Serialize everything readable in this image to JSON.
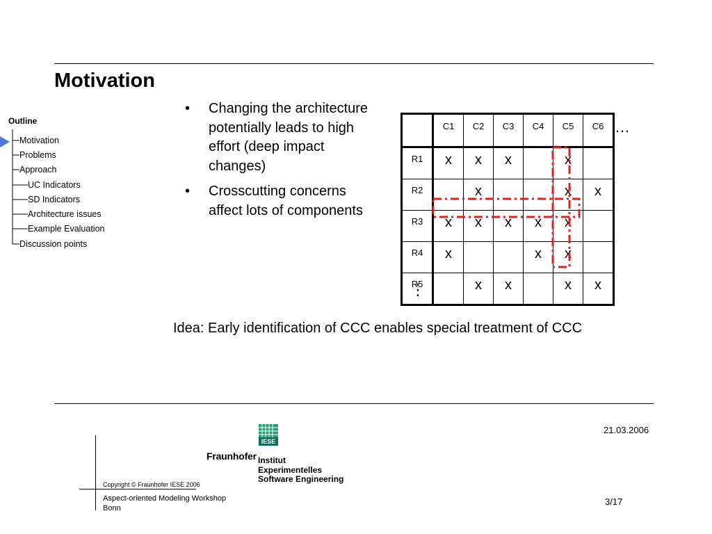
{
  "slide": {
    "title": "Motivation"
  },
  "outline": {
    "heading": "Outline",
    "items": [
      {
        "label": "Motivation",
        "level": 1,
        "current": true
      },
      {
        "label": "Problems",
        "level": 1
      },
      {
        "label": "Approach",
        "level": 1
      },
      {
        "label": "UC Indicators",
        "level": 2
      },
      {
        "label": "SD Indicators",
        "level": 2
      },
      {
        "label": "Architecture issues",
        "level": 2
      },
      {
        "label": "Example Evaluation",
        "level": 2
      },
      {
        "label": "Discussion points",
        "level": 1
      }
    ]
  },
  "bullets": [
    {
      "marker": "•",
      "text": "Changing the architecture potentially leads to high effort (deep impact changes)"
    },
    {
      "marker": "•",
      "text": "Crosscutting concerns affect lots of components"
    }
  ],
  "matrix": {
    "columns": [
      "C1",
      "C2",
      "C3",
      "C4",
      "C5",
      "C6"
    ],
    "rows": [
      {
        "label": "R1",
        "cells": [
          "x",
          "x",
          "x",
          "",
          "x",
          ""
        ]
      },
      {
        "label": "R2",
        "cells": [
          "",
          "x",
          "",
          "",
          "x",
          "x"
        ]
      },
      {
        "label": "R3",
        "cells": [
          "x",
          "x",
          "x",
          "x",
          "x",
          ""
        ]
      },
      {
        "label": "R4",
        "cells": [
          "x",
          "",
          "",
          "x",
          "x",
          ""
        ]
      },
      {
        "label": "R5",
        "cells": [
          "",
          "x",
          "x",
          "",
          "x",
          "x"
        ]
      }
    ],
    "highlight_color": "#e0201b",
    "highlighted_row": "R3",
    "highlighted_column": "C5",
    "more_columns": "…",
    "more_rows": "⋮"
  },
  "idea": "Idea: Early identification of CCC enables special treatment of CCC",
  "footer": {
    "date": "21.03.2006",
    "page": "3/17",
    "copyright": "Copyright © Fraunhofer IESE 2006",
    "event_line1": "Aspect-oriented Modeling Workshop",
    "event_line2": "Bonn"
  },
  "logo": {
    "org": "Fraunhofer",
    "badge": "IESE",
    "institute_line1": "Institut",
    "institute_line2": "Experimentelles",
    "institute_line3": "Software Engineering",
    "color": "#0f6e5a"
  }
}
